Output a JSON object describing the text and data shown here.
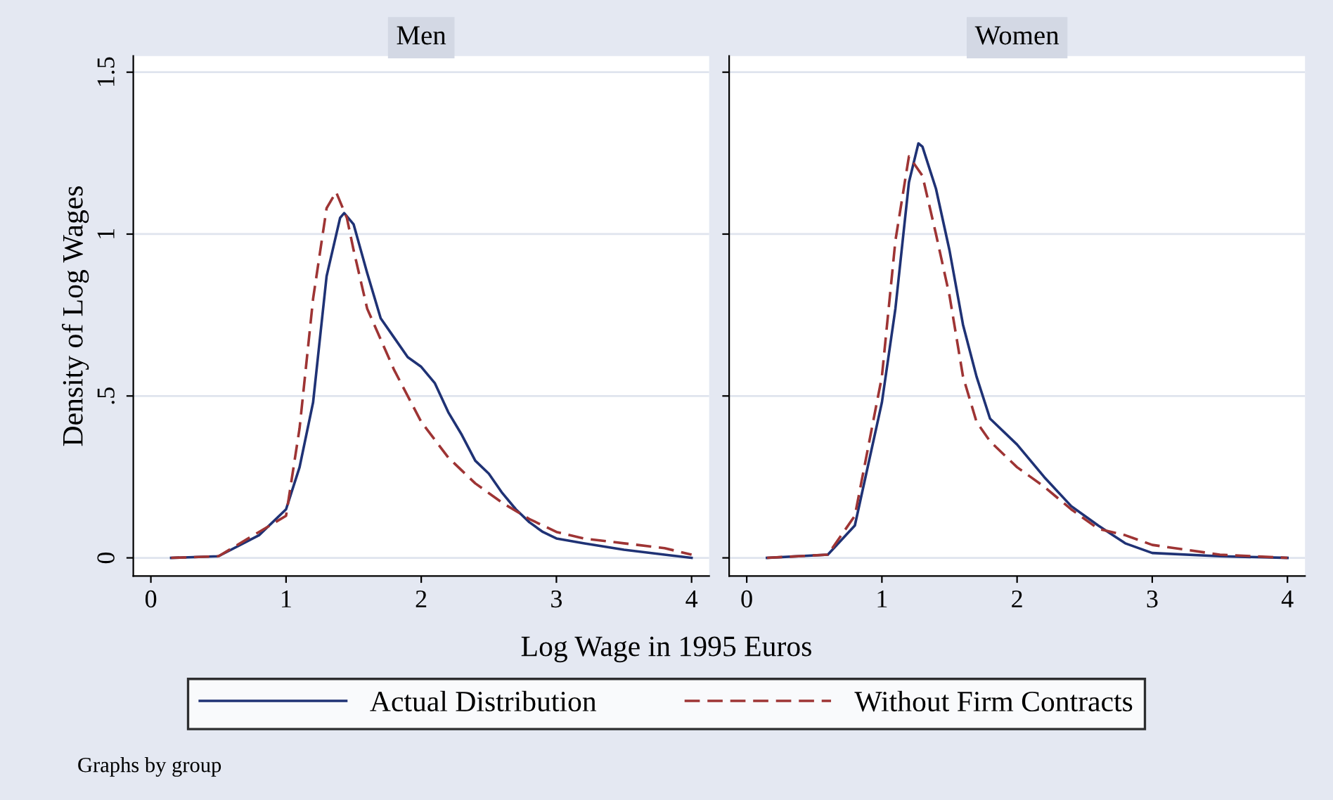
{
  "chart_data": [
    {
      "type": "line",
      "title": "Men",
      "xlabel": "Log Wage in 1995 Euros",
      "ylabel": "Density of Log Wages",
      "annotations": [
        "Graphs by group"
      ],
      "legend": "bottom",
      "grid": "y",
      "xlim": [
        -0.13,
        4.13
      ],
      "ylim": [
        -0.056,
        1.55
      ],
      "xticks": [
        0,
        1,
        2,
        3,
        4
      ],
      "yticks": [
        0,
        {
          "value": 0.5,
          "label": ".5"
        },
        1,
        1.5
      ],
      "series": [
        {
          "name": "Actual Distribution",
          "color": "#1f3275",
          "line_style": "solid",
          "x": [
            0.15,
            0.5,
            0.8,
            1.0,
            1.1,
            1.2,
            1.3,
            1.4,
            1.43,
            1.5,
            1.6,
            1.7,
            1.8,
            1.9,
            2.0,
            2.1,
            2.2,
            2.3,
            2.4,
            2.5,
            2.6,
            2.7,
            2.8,
            2.9,
            3.0,
            3.2,
            3.5,
            3.8,
            4.0
          ],
          "values": [
            0,
            0.005,
            0.07,
            0.15,
            0.28,
            0.48,
            0.87,
            1.05,
            1.065,
            1.03,
            0.88,
            0.74,
            0.68,
            0.62,
            0.59,
            0.54,
            0.45,
            0.38,
            0.3,
            0.26,
            0.2,
            0.15,
            0.11,
            0.08,
            0.06,
            0.045,
            0.025,
            0.01,
            0
          ]
        },
        {
          "name": "Without Firm Contracts",
          "color": "#9e3434",
          "line_style": "dashed",
          "x": [
            0.15,
            0.5,
            0.8,
            1.0,
            1.1,
            1.2,
            1.3,
            1.37,
            1.45,
            1.5,
            1.6,
            1.8,
            2.0,
            2.2,
            2.4,
            2.5,
            2.6,
            2.8,
            3.0,
            3.2,
            3.5,
            3.8,
            4.0
          ],
          "values": [
            0,
            0.005,
            0.08,
            0.13,
            0.4,
            0.8,
            1.08,
            1.13,
            1.05,
            0.95,
            0.77,
            0.58,
            0.42,
            0.31,
            0.23,
            0.2,
            0.17,
            0.12,
            0.08,
            0.06,
            0.045,
            0.03,
            0.01
          ]
        }
      ]
    },
    {
      "type": "line",
      "title": "Women",
      "tick_labels": "x",
      "grid": "y",
      "xlim": [
        -0.13,
        4.13
      ],
      "ylim": [
        -0.056,
        1.55
      ],
      "xticks": [
        0,
        1,
        2,
        3,
        4
      ],
      "yticks": [
        {
          "value": 0,
          "label": null
        },
        {
          "value": 0.5,
          "label": null
        },
        {
          "value": 1,
          "label": null
        },
        {
          "value": 1.5,
          "label": null
        }
      ],
      "series": [
        {
          "color": "#1f3275",
          "line_style": "solid",
          "x": [
            0.15,
            0.6,
            0.8,
            1.0,
            1.1,
            1.2,
            1.27,
            1.3,
            1.4,
            1.5,
            1.6,
            1.7,
            1.8,
            2.0,
            2.2,
            2.4,
            2.6,
            2.8,
            3.0,
            3.5,
            4.0
          ],
          "values": [
            0,
            0.01,
            0.1,
            0.48,
            0.77,
            1.16,
            1.28,
            1.27,
            1.14,
            0.95,
            0.72,
            0.56,
            0.43,
            0.35,
            0.25,
            0.16,
            0.1,
            0.045,
            0.015,
            0.005,
            0
          ]
        },
        {
          "color": "#9e3434",
          "line_style": "dashed",
          "x": [
            0.15,
            0.6,
            0.8,
            1.0,
            1.1,
            1.2,
            1.3,
            1.4,
            1.5,
            1.6,
            1.7,
            1.8,
            2.0,
            2.2,
            2.4,
            2.6,
            2.8,
            3.0,
            3.5,
            4.0
          ],
          "values": [
            0,
            0.01,
            0.13,
            0.56,
            0.98,
            1.24,
            1.18,
            1.0,
            0.81,
            0.56,
            0.42,
            0.36,
            0.28,
            0.22,
            0.15,
            0.09,
            0.07,
            0.04,
            0.01,
            0
          ]
        }
      ]
    }
  ]
}
